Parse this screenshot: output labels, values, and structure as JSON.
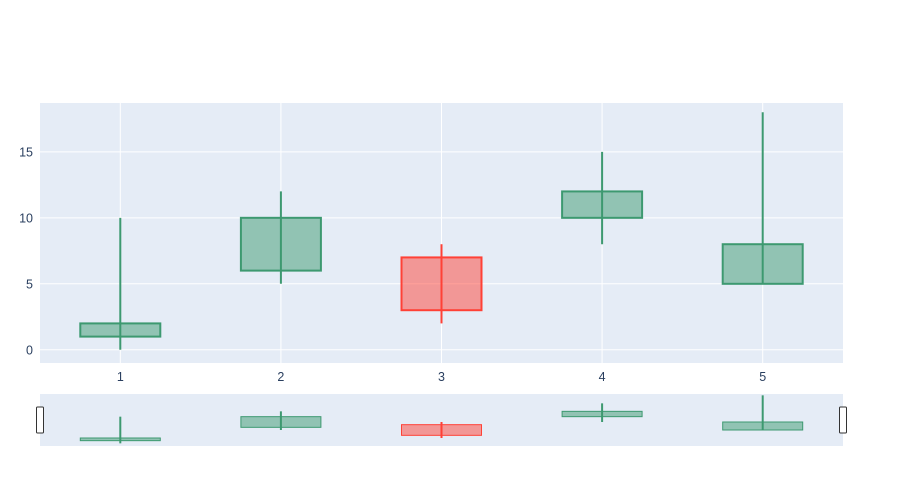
{
  "figure": {
    "background": "#FFFFFF",
    "title": ""
  },
  "chart_data": {
    "type": "candlestick",
    "title": "",
    "xlabel": "",
    "ylabel": "",
    "x": [
      1,
      2,
      3,
      4,
      5
    ],
    "series": [
      {
        "x": 1,
        "open": 1,
        "high": 10,
        "low": 0,
        "close": 2,
        "direction": "increasing"
      },
      {
        "x": 2,
        "open": 6,
        "high": 12,
        "low": 5,
        "close": 10,
        "direction": "increasing"
      },
      {
        "x": 3,
        "open": 7,
        "high": 8,
        "low": 2,
        "close": 3,
        "direction": "decreasing"
      },
      {
        "x": 4,
        "open": 10,
        "high": 15,
        "low": 8,
        "close": 12,
        "direction": "increasing"
      },
      {
        "x": 5,
        "open": 5,
        "high": 18,
        "low": 5,
        "close": 8,
        "direction": "increasing"
      }
    ],
    "xticks": [
      "1",
      "2",
      "3",
      "4",
      "5"
    ],
    "yticks": [
      "0",
      "5",
      "10",
      "15"
    ],
    "xtick_values": [
      1,
      2,
      3,
      4,
      5
    ],
    "ytick_values": [
      0,
      5,
      10,
      15
    ],
    "x_range": [
      0.5,
      5.5
    ],
    "y_range": [
      -1.0,
      18.7
    ],
    "grid": true,
    "legend": false,
    "rangeslider": {
      "visible": true,
      "y_range": [
        -1.0,
        18.5
      ]
    },
    "colors": {
      "increasing": "#3D9970",
      "decreasing": "#FF4136",
      "body_fill_opacity": "0.5",
      "plot_background": "#E5ECF6",
      "gridline": "#FFFFFF",
      "tick_label": "#2A3F5F",
      "slider_handle_fill": "#FFFFFF",
      "slider_handle_border": "#333333"
    }
  }
}
